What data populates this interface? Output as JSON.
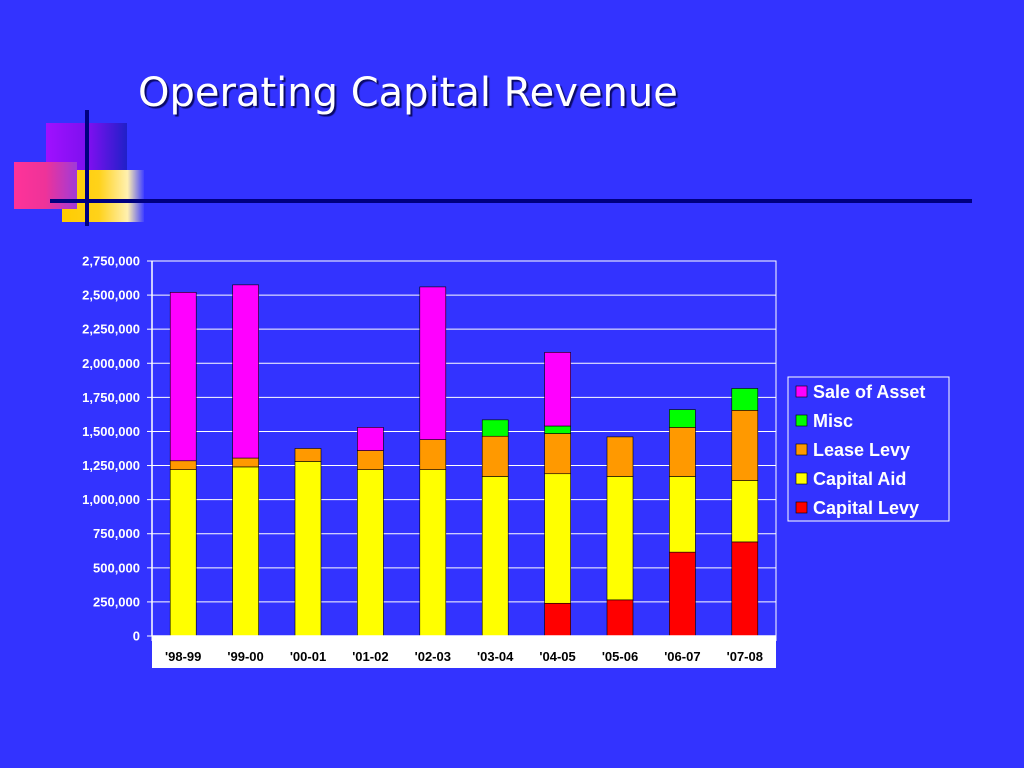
{
  "slide": {
    "title": "Operating Capital Revenue"
  },
  "chart_data": {
    "type": "bar",
    "stacked": true,
    "title": "",
    "xlabel": "",
    "ylabel": "",
    "categories": [
      "'98-99",
      "'99-00",
      "'00-01",
      "'01-02",
      "'02-03",
      "'03-04",
      "'04-05",
      "'05-06",
      "'06-07",
      "'07-08"
    ],
    "ylim": [
      0,
      2750000
    ],
    "yticks": [
      0,
      250000,
      500000,
      750000,
      1000000,
      1250000,
      1500000,
      1750000,
      2000000,
      2250000,
      2500000,
      2750000
    ],
    "ytick_labels": [
      "0",
      "250,000",
      "500,000",
      "750,000",
      "1,000,000",
      "1,250,000",
      "1,500,000",
      "1,750,000",
      "2,000,000",
      "2,250,000",
      "2,500,000",
      "2,750,000"
    ],
    "grid": true,
    "legend_position": "right",
    "series": [
      {
        "name": "Capital Levy",
        "color": "#ff0000",
        "values": [
          0,
          0,
          0,
          0,
          0,
          0,
          240000,
          265000,
          615000,
          690000
        ]
      },
      {
        "name": "Capital Aid",
        "color": "#ffff00",
        "values": [
          1220000,
          1240000,
          1280000,
          1220000,
          1220000,
          1170000,
          950000,
          905000,
          555000,
          450000
        ]
      },
      {
        "name": "Lease Levy",
        "color": "#ff9900",
        "values": [
          65000,
          65000,
          95000,
          140000,
          220000,
          295000,
          295000,
          290000,
          360000,
          515000
        ]
      },
      {
        "name": "Misc",
        "color": "#00ff00",
        "values": [
          0,
          0,
          0,
          0,
          0,
          120000,
          55000,
          0,
          130000,
          160000
        ]
      },
      {
        "name": "Sale of Asset",
        "color": "#ff00ff",
        "values": [
          1235000,
          1270000,
          0,
          170000,
          1120000,
          0,
          540000,
          0,
          0,
          0
        ]
      }
    ]
  }
}
